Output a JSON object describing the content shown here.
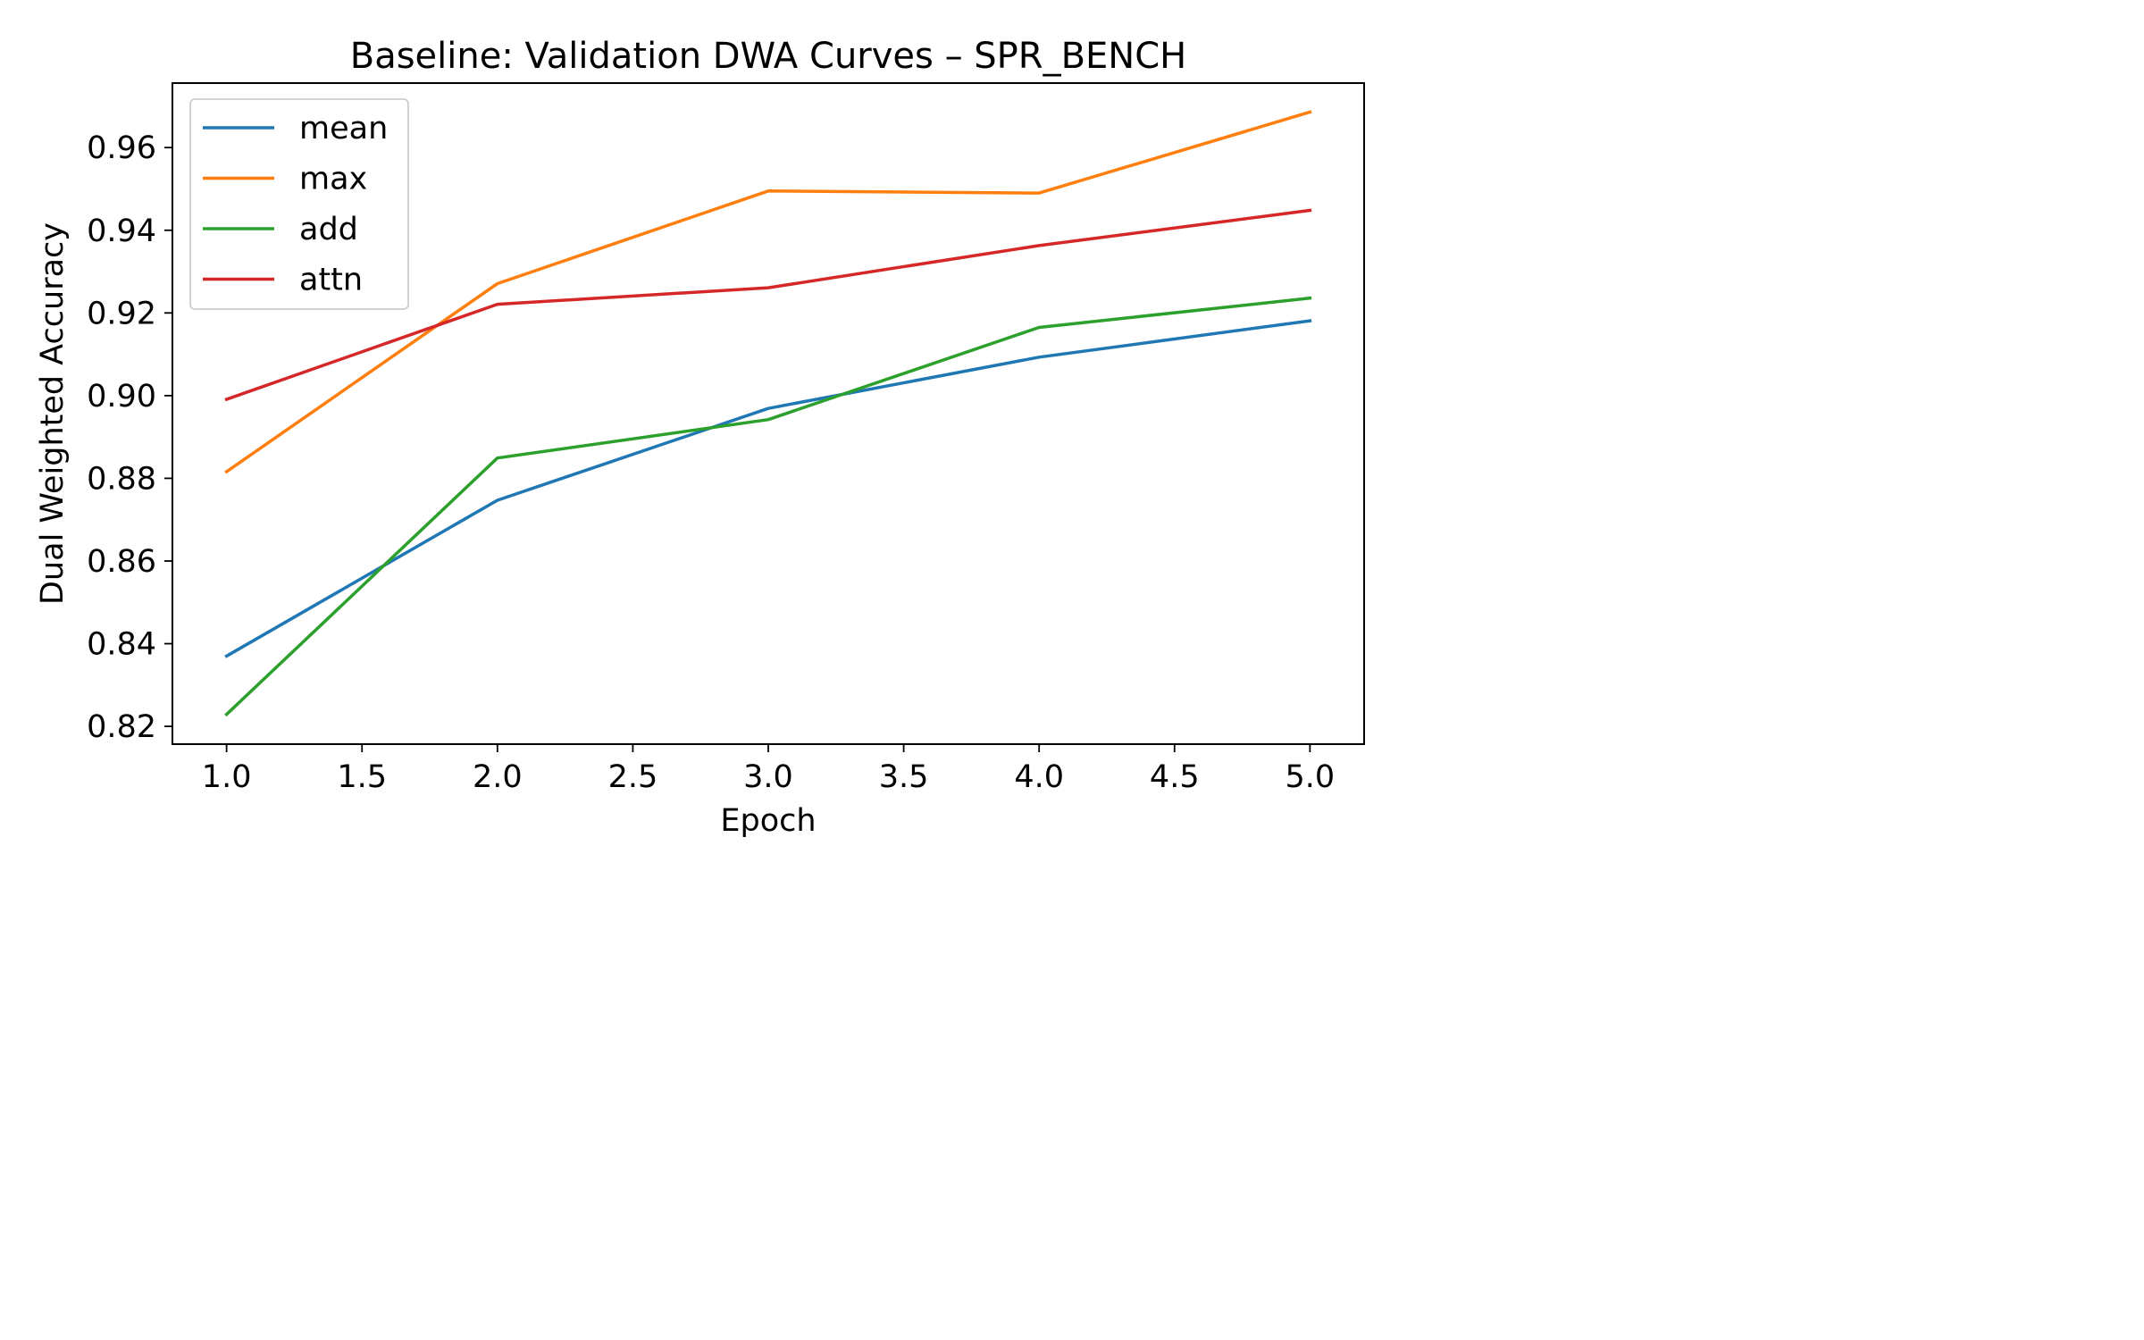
{
  "chart_data": {
    "type": "line",
    "title": "Baseline: Validation DWA Curves – SPR_BENCH",
    "xlabel": "Epoch",
    "ylabel": "Dual Weighted Accuracy",
    "x": [
      1.0,
      2.0,
      3.0,
      4.0,
      5.0
    ],
    "xlim": [
      0.8,
      5.2
    ],
    "ylim": [
      0.8157,
      0.9756
    ],
    "xticks": [
      1.0,
      1.5,
      2.0,
      2.5,
      3.0,
      3.5,
      4.0,
      4.5,
      5.0
    ],
    "xtick_labels": [
      "1.0",
      "1.5",
      "2.0",
      "2.5",
      "3.0",
      "3.5",
      "4.0",
      "4.5",
      "5.0"
    ],
    "yticks": [
      0.82,
      0.84,
      0.86,
      0.88,
      0.9,
      0.92,
      0.94,
      0.96
    ],
    "ytick_labels": [
      "0.82",
      "0.84",
      "0.86",
      "0.88",
      "0.90",
      "0.92",
      "0.94",
      "0.96"
    ],
    "grid": false,
    "legend_position": "upper-left",
    "series": [
      {
        "name": "mean",
        "color": "#1f77b4",
        "values": [
          0.837,
          0.8747,
          0.8969,
          0.9093,
          0.9181
        ]
      },
      {
        "name": "max",
        "color": "#ff7f0e",
        "values": [
          0.8816,
          0.9271,
          0.9495,
          0.949,
          0.9686
        ]
      },
      {
        "name": "add",
        "color": "#2ca02c",
        "values": [
          0.8229,
          0.8849,
          0.8942,
          0.9165,
          0.9236
        ]
      },
      {
        "name": "attn",
        "color": "#d62728",
        "values": [
          0.8991,
          0.9221,
          0.9261,
          0.9363,
          0.9448
        ]
      }
    ]
  }
}
